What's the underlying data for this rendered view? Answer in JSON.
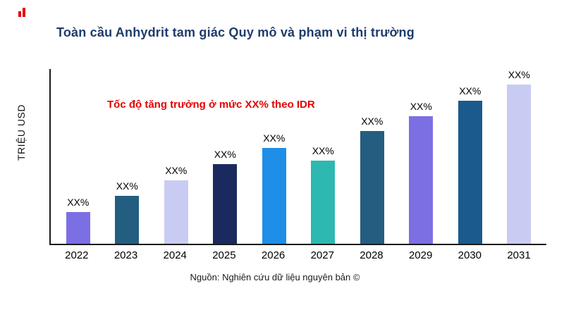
{
  "title": "Toàn cầu Anhydrit tam giác Quy mô và phạm vi thị trường",
  "annotation": "Tốc độ tăng trưởng ở mức XX% theo IDR",
  "ylabel": "TRIỆU USD",
  "source": "Nguồn: Nghiên cứu dữ liệu nguyên bản ©",
  "colors": {
    "title": "#1f3c6d",
    "annotation": "#e60000",
    "axis": "#1a1a1a",
    "logo": "#e8000d"
  },
  "chart_data": {
    "type": "bar",
    "title": "Toàn cầu Anhydrit tam giác Quy mô và phạm vi thị trường",
    "xlabel": "",
    "ylabel": "TRIỆU USD",
    "categories": [
      "2022",
      "2023",
      "2024",
      "2025",
      "2026",
      "2027",
      "2028",
      "2029",
      "2030",
      "2031"
    ],
    "values": [
      20,
      30,
      40,
      50,
      60,
      52,
      71,
      80,
      90,
      100
    ],
    "bar_labels": [
      "XX%",
      "XX%",
      "XX%",
      "XX%",
      "XX%",
      "XX%",
      "XX%",
      "XX%",
      "XX%",
      "XX%"
    ],
    "bar_colors": [
      "#7c6fe4",
      "#235e80",
      "#c9ccf2",
      "#1b2a5e",
      "#1e8ee8",
      "#2eb8b2",
      "#235e80",
      "#7c6fe4",
      "#1b5a8c",
      "#c9ccf2"
    ],
    "grid": false,
    "legend": "none",
    "value_scale": "relative-percent-of-max",
    "annotations": [
      "Tốc độ tăng trưởng ở mức XX% theo IDR"
    ]
  }
}
